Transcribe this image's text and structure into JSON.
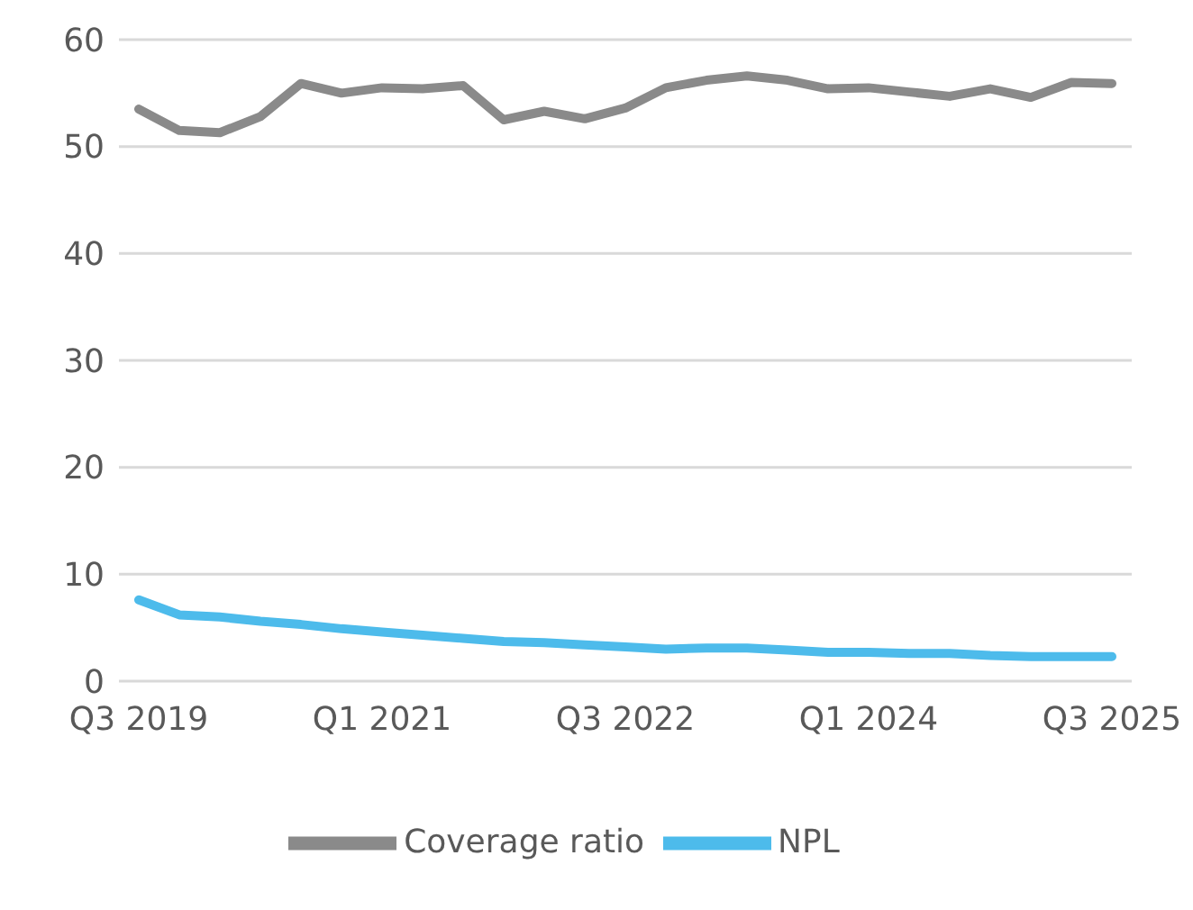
{
  "chart_data": {
    "type": "line",
    "categories": [
      "Q3 2019",
      null,
      null,
      null,
      null,
      null,
      "Q1 2021",
      null,
      null,
      null,
      null,
      null,
      "Q3 2022",
      null,
      null,
      null,
      null,
      null,
      "Q1 2024",
      null,
      null,
      null,
      null,
      null,
      "Q3 2025"
    ],
    "series": [
      {
        "name": "NPL",
        "color": "#4dbbeb",
        "values": [
          7.6,
          6.2,
          6.0,
          5.6,
          5.3,
          4.9,
          4.6,
          4.3,
          4.0,
          3.7,
          3.6,
          3.4,
          3.2,
          3.0,
          3.1,
          3.1,
          2.9,
          2.7,
          2.7,
          2.6,
          2.6,
          2.4,
          2.3,
          2.3,
          2.3
        ]
      },
      {
        "name": "Coverage ratio",
        "color": "#8a8a8a",
        "values": [
          53.5,
          51.5,
          51.3,
          52.8,
          55.9,
          55.0,
          55.5,
          55.4,
          55.7,
          52.5,
          53.3,
          52.6,
          53.6,
          55.5,
          56.2,
          56.6,
          56.2,
          55.4,
          55.5,
          55.1,
          54.7,
          55.4,
          54.6,
          56.0,
          55.9
        ]
      }
    ],
    "ylim": [
      0,
      60
    ],
    "yticks": [
      0,
      10,
      20,
      30,
      40,
      50,
      60
    ],
    "grid": "y",
    "legend": "bottom",
    "marker": "none",
    "line_style": "solid"
  }
}
